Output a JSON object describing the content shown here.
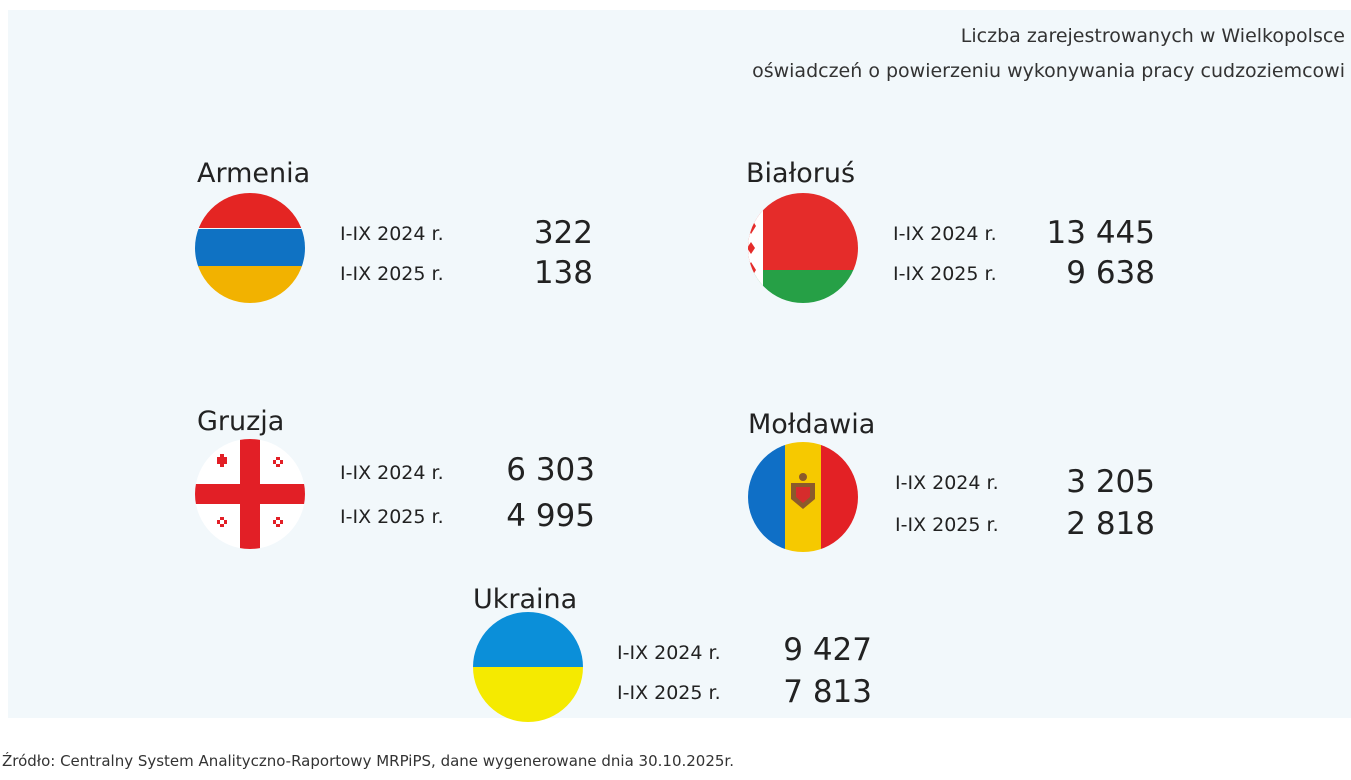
{
  "header": {
    "title": [
      "Liczba zarejestrowanych w Wielkopolsce",
      "oświadczeń o powierzeniu wykonywania pracy cudzoziemcowi"
    ]
  },
  "countries": [
    {
      "name": "Armenia",
      "rows": [
        {
          "period": "I-IX 2024 r.",
          "value": "322"
        },
        {
          "period": "I-IX 2025 r.",
          "value": "138"
        }
      ]
    },
    {
      "name": "Białoruś",
      "rows": [
        {
          "period": "I-IX 2024 r.",
          "value": "13 445"
        },
        {
          "period": "I-IX 2025 r.",
          "value": "9 638"
        }
      ]
    },
    {
      "name": "Gruzja",
      "rows": [
        {
          "period": "I-IX 2024 r.",
          "value": "6 303"
        },
        {
          "period": "I-IX 2025 r.",
          "value": "4 995"
        }
      ]
    },
    {
      "name": "Mołdawia",
      "rows": [
        {
          "period": "I-IX 2024 r.",
          "value": "3 205"
        },
        {
          "period": "I-IX 2025 r.",
          "value": "2 818"
        }
      ]
    },
    {
      "name": "Ukraina",
      "rows": [
        {
          "period": "I-IX 2024 r.",
          "value": "9 427"
        },
        {
          "period": "I-IX 2025 r.",
          "value": "7 813"
        }
      ]
    }
  ],
  "source": "Źródło: Centralny System Analityczno-Raportowy MRPiPS, dane wygenerowane dnia 30.10.2025r."
}
